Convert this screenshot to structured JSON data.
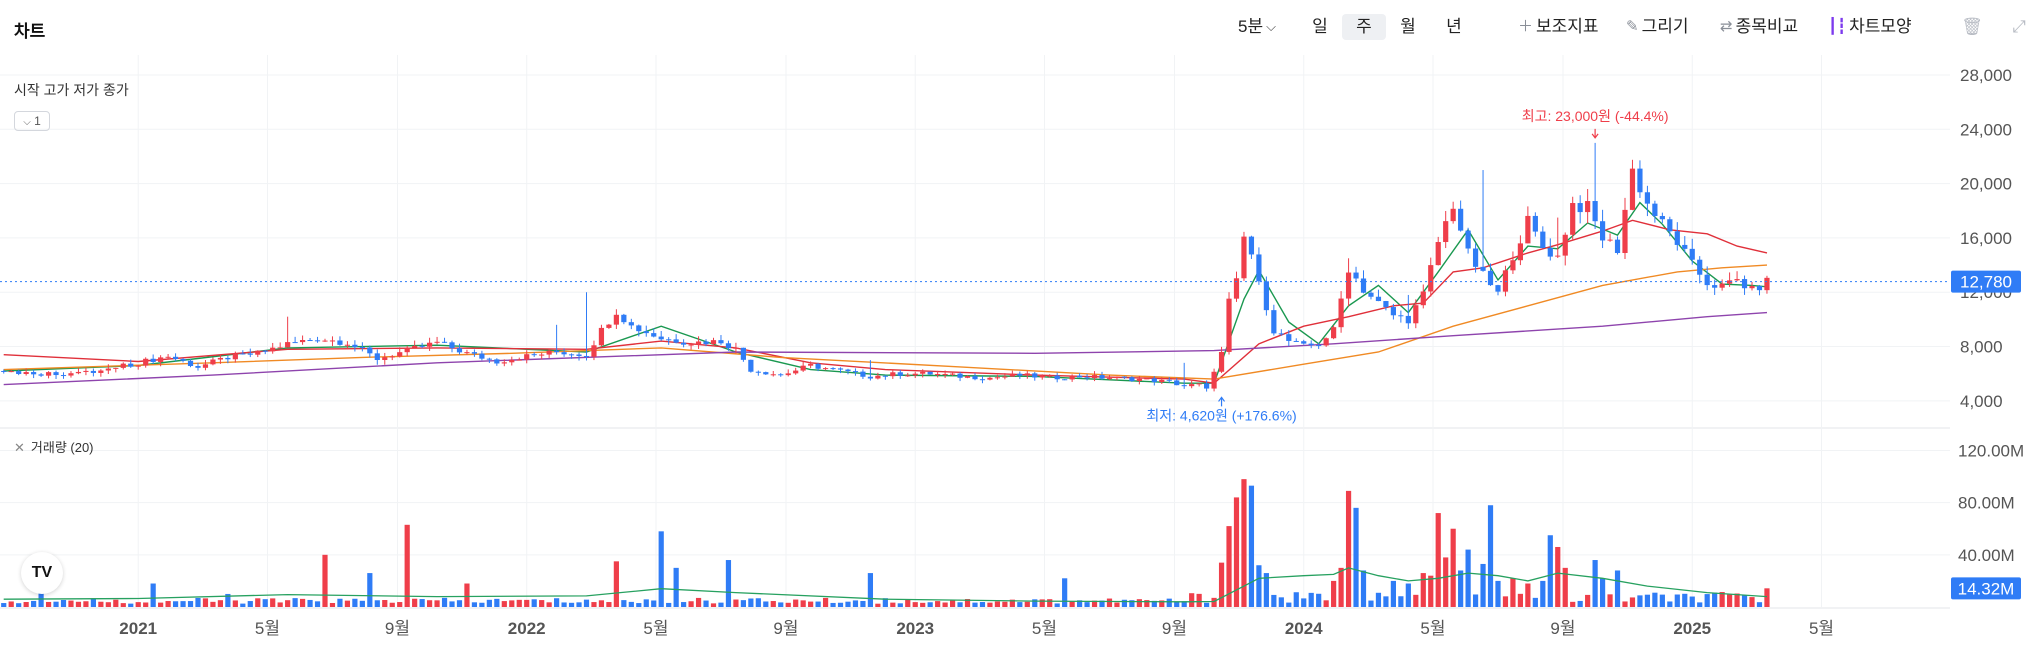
{
  "header": {
    "title": "차트",
    "interval": "5분",
    "periods": [
      "일",
      "주",
      "월",
      "년"
    ],
    "active_period": "주",
    "tools": [
      {
        "label": "보조지표",
        "icon": "plus-icon"
      },
      {
        "label": "그리기",
        "icon": "pencil-icon"
      },
      {
        "label": "종목비교",
        "icon": "compare-arrows-icon"
      },
      {
        "label": "차트모양",
        "icon": "candlestick-icon"
      }
    ]
  },
  "legend": {
    "ohlc_labels": "시작 고가 저가 종가",
    "collapse_count": "1"
  },
  "volume_legend": {
    "label": "거래량 (20)"
  },
  "logo_text": "TV",
  "colors": {
    "up": "#ef3e4a",
    "down": "#2f7cf6",
    "ma5": "#1a9850",
    "ma20": "#e0303a",
    "ma60": "#f08a24",
    "ma120": "#8e44ad",
    "vol_ma": "#27a160",
    "price_tag": "#2f7cf6"
  },
  "chart_data": [
    {
      "type": "candlestick",
      "y_ticks": [
        "28,000",
        "24,000",
        "20,000",
        "16,000",
        "12,000",
        "8,000",
        "4,000"
      ],
      "ylim": [
        2000,
        28000
      ],
      "x_ticks": [
        {
          "label": "2021",
          "bold": true,
          "x": 0.0
        },
        {
          "label": "5월",
          "bold": false,
          "x": 17.3
        },
        {
          "label": "9월",
          "bold": false,
          "x": 34.7
        },
        {
          "label": "2022",
          "bold": true,
          "x": 52.0
        },
        {
          "label": "5월",
          "bold": false,
          "x": 69.3
        },
        {
          "label": "9월",
          "bold": false,
          "x": 86.7
        },
        {
          "label": "2023",
          "bold": true,
          "x": 104.0
        },
        {
          "label": "5월",
          "bold": false,
          "x": 121.3
        },
        {
          "label": "9월",
          "bold": false,
          "x": 138.7
        },
        {
          "label": "2024",
          "bold": true,
          "x": 156.0
        },
        {
          "label": "5월",
          "bold": false,
          "x": 173.3
        },
        {
          "label": "9월",
          "bold": false,
          "x": 190.7
        },
        {
          "label": "2025",
          "bold": true,
          "x": 208.0
        },
        {
          "label": "5월",
          "bold": false,
          "x": 225.3
        }
      ],
      "xlim": [
        -18.5,
        242.5
      ],
      "last_price": 12780,
      "last_price_label": "12,780",
      "high_annotation": {
        "label": "최고: 23,000원 (-44.4%)",
        "price": 23000,
        "x": 195
      },
      "low_annotation": {
        "label": "최저: 4,620원 (+176.6%)",
        "price": 4620,
        "x": 145
      },
      "close_path": [
        [
          -18,
          6200
        ],
        [
          -12,
          6000
        ],
        [
          -6,
          6100
        ],
        [
          0,
          6800
        ],
        [
          4,
          7300
        ],
        [
          8,
          6500
        ],
        [
          12,
          7200
        ],
        [
          16,
          7500
        ],
        [
          20,
          8200
        ],
        [
          24,
          8600
        ],
        [
          28,
          8300
        ],
        [
          32,
          7100
        ],
        [
          36,
          7700
        ],
        [
          40,
          8300
        ],
        [
          44,
          7500
        ],
        [
          48,
          6900
        ],
        [
          52,
          7300
        ],
        [
          56,
          7600
        ],
        [
          60,
          7400
        ],
        [
          62,
          9200
        ],
        [
          64,
          10600
        ],
        [
          66,
          9500
        ],
        [
          70,
          8600
        ],
        [
          74,
          8300
        ],
        [
          78,
          8400
        ],
        [
          80,
          7800
        ],
        [
          82,
          6300
        ],
        [
          86,
          5900
        ],
        [
          90,
          6600
        ],
        [
          94,
          6200
        ],
        [
          98,
          5800
        ],
        [
          102,
          6000
        ],
        [
          106,
          6000
        ],
        [
          110,
          5800
        ],
        [
          114,
          5700
        ],
        [
          118,
          5900
        ],
        [
          122,
          5700
        ],
        [
          126,
          5800
        ],
        [
          130,
          5700
        ],
        [
          134,
          5600
        ],
        [
          138,
          5400
        ],
        [
          140,
          5100
        ],
        [
          142,
          5200
        ],
        [
          143,
          4800
        ],
        [
          144,
          6300
        ],
        [
          145,
          7500
        ],
        [
          146,
          11300
        ],
        [
          147,
          12700
        ],
        [
          148,
          16000
        ],
        [
          149,
          14800
        ],
        [
          150,
          12500
        ],
        [
          151,
          11000
        ],
        [
          152,
          9200
        ],
        [
          154,
          8400
        ],
        [
          156,
          8000
        ],
        [
          158,
          8200
        ],
        [
          160,
          9200
        ],
        [
          162,
          13800
        ],
        [
          164,
          12200
        ],
        [
          166,
          11200
        ],
        [
          168,
          10300
        ],
        [
          170,
          10000
        ],
        [
          172,
          11800
        ],
        [
          174,
          15700
        ],
        [
          176,
          18500
        ],
        [
          178,
          14800
        ],
        [
          180,
          13200
        ],
        [
          182,
          11900
        ],
        [
          184,
          14800
        ],
        [
          186,
          17200
        ],
        [
          188,
          15300
        ],
        [
          190,
          14600
        ],
        [
          192,
          18500
        ],
        [
          194,
          18200
        ],
        [
          196,
          16000
        ],
        [
          198,
          15200
        ],
        [
          200,
          21000
        ],
        [
          202,
          18500
        ],
        [
          204,
          17000
        ],
        [
          206,
          15700
        ],
        [
          208,
          14000
        ],
        [
          210,
          12700
        ],
        [
          212,
          12400
        ],
        [
          214,
          12900
        ],
        [
          216,
          12100
        ],
        [
          218,
          12780
        ]
      ],
      "spikes": [
        [
          20,
          10200
        ],
        [
          56,
          9600
        ],
        [
          60,
          12000
        ],
        [
          98,
          7000
        ],
        [
          140,
          6800
        ],
        [
          162,
          14500
        ],
        [
          170,
          11800
        ],
        [
          180,
          21000
        ],
        [
          190,
          17500
        ],
        [
          195,
          23000
        ],
        [
          200,
          19000
        ]
      ],
      "ma": [
        {
          "name": "MA5",
          "points": [
            [
              -18,
              6200
            ],
            [
              0,
              6600
            ],
            [
              20,
              7900
            ],
            [
              40,
              8100
            ],
            [
              60,
              7600
            ],
            [
              70,
              9500
            ],
            [
              80,
              7600
            ],
            [
              90,
              6300
            ],
            [
              100,
              5900
            ],
            [
              120,
              5800
            ],
            [
              140,
              5300
            ],
            [
              144,
              5300
            ],
            [
              148,
              11500
            ],
            [
              150,
              13600
            ],
            [
              154,
              9800
            ],
            [
              158,
              8200
            ],
            [
              162,
              11000
            ],
            [
              166,
              12500
            ],
            [
              170,
              10500
            ],
            [
              174,
              13500
            ],
            [
              178,
              16600
            ],
            [
              182,
              12900
            ],
            [
              186,
              15400
            ],
            [
              190,
              15200
            ],
            [
              194,
              17100
            ],
            [
              198,
              16200
            ],
            [
              201,
              18600
            ],
            [
              204,
              17000
            ],
            [
              208,
              14300
            ],
            [
              212,
              12600
            ],
            [
              216,
              12500
            ],
            [
              218,
              12400
            ]
          ]
        },
        {
          "name": "MA20",
          "points": [
            [
              -18,
              7400
            ],
            [
              0,
              6900
            ],
            [
              20,
              7800
            ],
            [
              40,
              7900
            ],
            [
              60,
              7800
            ],
            [
              70,
              8400
            ],
            [
              80,
              7900
            ],
            [
              90,
              6800
            ],
            [
              100,
              6300
            ],
            [
              120,
              5900
            ],
            [
              140,
              5600
            ],
            [
              144,
              5300
            ],
            [
              150,
              8200
            ],
            [
              156,
              9500
            ],
            [
              162,
              10200
            ],
            [
              168,
              11000
            ],
            [
              172,
              11200
            ],
            [
              176,
              13500
            ],
            [
              180,
              13800
            ],
            [
              186,
              14900
            ],
            [
              190,
              15500
            ],
            [
              196,
              16500
            ],
            [
              200,
              17300
            ],
            [
              205,
              16600
            ],
            [
              210,
              16300
            ],
            [
              214,
              15400
            ],
            [
              218,
              14900
            ]
          ]
        },
        {
          "name": "MA60",
          "points": [
            [
              -18,
              6300
            ],
            [
              10,
              6800
            ],
            [
              30,
              7200
            ],
            [
              50,
              7500
            ],
            [
              70,
              7900
            ],
            [
              86,
              7200
            ],
            [
              110,
              6500
            ],
            [
              130,
              5900
            ],
            [
              144,
              5600
            ],
            [
              156,
              6700
            ],
            [
              166,
              7600
            ],
            [
              176,
              9500
            ],
            [
              186,
              11000
            ],
            [
              196,
              12500
            ],
            [
              206,
              13500
            ],
            [
              212,
              13800
            ],
            [
              218,
              14000
            ]
          ]
        },
        {
          "name": "MA120",
          "points": [
            [
              -18,
              5200
            ],
            [
              10,
              5900
            ],
            [
              40,
              6800
            ],
            [
              80,
              7600
            ],
            [
              120,
              7500
            ],
            [
              144,
              7700
            ],
            [
              160,
              8200
            ],
            [
              176,
              8800
            ],
            [
              196,
              9500
            ],
            [
              210,
              10200
            ],
            [
              218,
              10500
            ]
          ]
        }
      ]
    },
    {
      "type": "bar",
      "name": "거래량",
      "y_ticks": [
        "120.00M",
        "80.00M",
        "40.00M"
      ],
      "ylim": [
        0,
        128000000
      ],
      "last_volume": 14320000,
      "last_volume_label": "14.32M",
      "big_bars": [
        [
          -13,
          25000000
        ],
        [
          2,
          18000000
        ],
        [
          12,
          10000000
        ],
        [
          25,
          40000000
        ],
        [
          31,
          26000000
        ],
        [
          36,
          63000000
        ],
        [
          44,
          18000000
        ],
        [
          64,
          35000000
        ],
        [
          70,
          58000000
        ],
        [
          72,
          30000000
        ],
        [
          79,
          36000000
        ],
        [
          98,
          26000000
        ],
        [
          124,
          22000000
        ],
        [
          145,
          34000000
        ],
        [
          146,
          62000000
        ],
        [
          147,
          84000000
        ],
        [
          148,
          98000000
        ],
        [
          149,
          93000000
        ],
        [
          150,
          32000000
        ],
        [
          151,
          26000000
        ],
        [
          160,
          20000000
        ],
        [
          161,
          30000000
        ],
        [
          162,
          89000000
        ],
        [
          163,
          76000000
        ],
        [
          164,
          28000000
        ],
        [
          168,
          20000000
        ],
        [
          170,
          18000000
        ],
        [
          172,
          26000000
        ],
        [
          173,
          24000000
        ],
        [
          174,
          72000000
        ],
        [
          175,
          38000000
        ],
        [
          176,
          60000000
        ],
        [
          177,
          28000000
        ],
        [
          178,
          44000000
        ],
        [
          180,
          33000000
        ],
        [
          181,
          78000000
        ],
        [
          182,
          20000000
        ],
        [
          184,
          22000000
        ],
        [
          186,
          18000000
        ],
        [
          188,
          20000000
        ],
        [
          189,
          55000000
        ],
        [
          190,
          46000000
        ],
        [
          191,
          30000000
        ],
        [
          195,
          36000000
        ],
        [
          196,
          22000000
        ],
        [
          198,
          28000000
        ],
        [
          218,
          14320000
        ]
      ],
      "vol_ma_points": [
        [
          -18,
          6000000
        ],
        [
          0,
          6500000
        ],
        [
          20,
          9500000
        ],
        [
          40,
          8000000
        ],
        [
          60,
          8500000
        ],
        [
          70,
          14000000
        ],
        [
          80,
          11000000
        ],
        [
          100,
          6000000
        ],
        [
          120,
          4500000
        ],
        [
          140,
          4000000
        ],
        [
          144,
          4200000
        ],
        [
          148,
          16000000
        ],
        [
          150,
          22000000
        ],
        [
          156,
          24000000
        ],
        [
          160,
          25000000
        ],
        [
          162,
          30000000
        ],
        [
          166,
          24000000
        ],
        [
          170,
          20000000
        ],
        [
          174,
          22000000
        ],
        [
          178,
          26000000
        ],
        [
          182,
          24000000
        ],
        [
          186,
          20000000
        ],
        [
          190,
          26000000
        ],
        [
          196,
          22000000
        ],
        [
          202,
          16000000
        ],
        [
          210,
          11000000
        ],
        [
          218,
          8000000
        ]
      ]
    }
  ]
}
